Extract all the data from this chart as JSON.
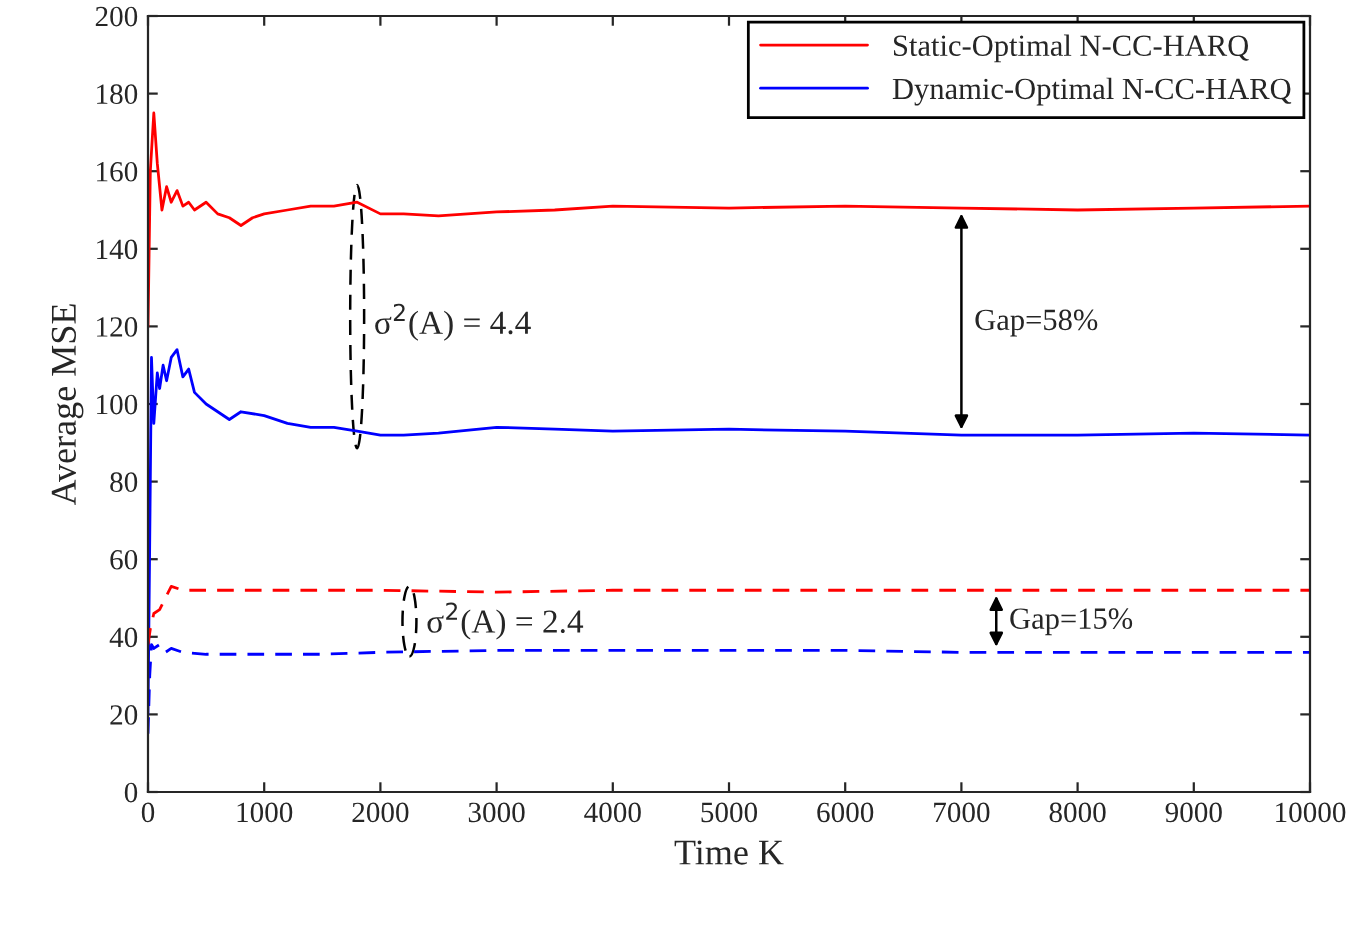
{
  "chart_data": {
    "type": "line",
    "xlabel": "Time K",
    "ylabel": "Average MSE",
    "xlim": [
      0,
      10000
    ],
    "xticks": [
      0,
      1000,
      2000,
      3000,
      4000,
      5000,
      6000,
      7000,
      8000,
      9000,
      10000
    ],
    "ylim": [
      0,
      200
    ],
    "yticks": [
      0,
      20,
      40,
      60,
      80,
      100,
      120,
      140,
      160,
      180,
      200
    ],
    "grid": false,
    "legend": "top right",
    "series": [
      {
        "name": "Static-Optimal N-CC-HARQ",
        "color": "#ff0000",
        "line_style": "solid",
        "x": [
          0,
          20,
          50,
          80,
          120,
          160,
          200,
          250,
          300,
          350,
          400,
          500,
          600,
          700,
          800,
          900,
          1000,
          1200,
          1400,
          1600,
          1800,
          2000,
          2200,
          2500,
          3000,
          3500,
          4000,
          5000,
          6000,
          7000,
          8000,
          9000,
          10000
        ],
        "values": [
          120,
          160,
          175,
          162,
          150,
          156,
          152,
          155,
          151,
          152,
          150,
          152,
          149,
          148,
          146,
          148,
          149,
          150,
          151,
          151,
          152,
          149,
          149,
          148.5,
          149.5,
          150,
          151,
          150.5,
          151,
          150.5,
          150,
          150.5,
          151
        ]
      },
      {
        "name": "Dynamic-Optimal N-CC-HARQ",
        "color": "#0000ff",
        "line_style": "solid",
        "x": [
          0,
          15,
          30,
          50,
          80,
          100,
          130,
          160,
          200,
          250,
          300,
          350,
          400,
          500,
          600,
          700,
          800,
          1000,
          1200,
          1400,
          1600,
          1800,
          2000,
          2200,
          2500,
          3000,
          3500,
          4000,
          5000,
          6000,
          7000,
          8000,
          9000,
          10000
        ],
        "values": [
          20,
          65,
          112,
          95,
          108,
          104,
          110,
          106,
          112,
          114,
          107,
          109,
          103,
          100,
          98,
          96,
          98,
          97,
          95,
          94,
          94,
          93,
          92,
          92,
          92.5,
          94,
          93.5,
          93,
          93.5,
          93,
          92,
          92,
          92.5,
          92
        ]
      },
      {
        "color": "#ff0000",
        "line_style": "dashed",
        "x": [
          0,
          20,
          50,
          100,
          150,
          200,
          300,
          500,
          1000,
          1500,
          2000,
          3000,
          4000,
          5000,
          6000,
          7000,
          8000,
          9000,
          10000
        ],
        "values": [
          38,
          42,
          46,
          47,
          50,
          53,
          52,
          52,
          52,
          52,
          52,
          51.5,
          52,
          52,
          52,
          52,
          52,
          52,
          52
        ]
      },
      {
        "color": "#0000ff",
        "line_style": "dashed",
        "x": [
          0,
          15,
          30,
          50,
          100,
          150,
          200,
          300,
          500,
          1000,
          1500,
          2000,
          3000,
          4000,
          5000,
          6000,
          7000,
          8000,
          9000,
          10000
        ],
        "values": [
          15,
          30,
          38,
          37,
          38,
          36,
          37,
          36,
          35.5,
          35.5,
          35.5,
          36,
          36.5,
          36.5,
          36.5,
          36.5,
          36,
          36,
          36,
          36
        ]
      }
    ],
    "annotations": [
      "σ$^{2}$(A) = 4.4",
      "Gap=58%",
      "σ$^{2}$(A) = 2.4",
      "Gap=15%"
    ]
  }
}
